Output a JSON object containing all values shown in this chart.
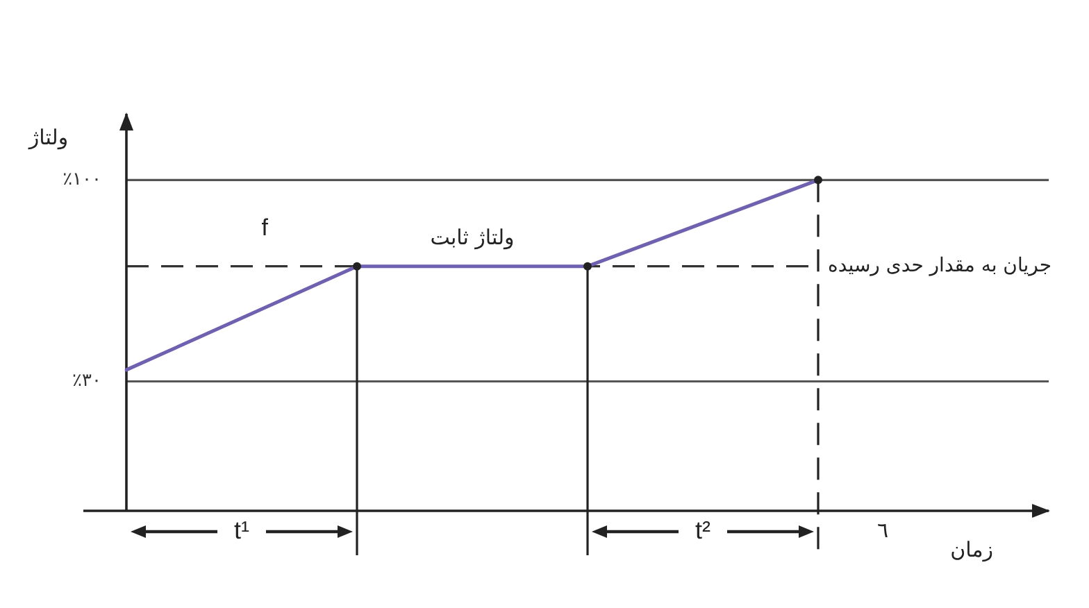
{
  "chart_data": {
    "type": "line",
    "xlabel": "زمان",
    "ylabel": "ولتاژ",
    "categories": [
      null,
      null,
      null,
      null,
      null
    ],
    "series": [
      {
        "color": "#7060b0",
        "values": [
          34,
          70,
          70,
          100,
          null
        ]
      },
      {
        "type": "lollipop",
        "color": "#222222",
        "marker": "circle",
        "values": [
          null,
          70,
          70,
          null,
          null
        ]
      },
      {
        "type": "lollipop",
        "color": "#222222",
        "marker": "circle",
        "line_style": "dashed",
        "values": [
          null,
          null,
          null,
          100,
          null
        ]
      }
    ],
    "marker": "none",
    "ylim": [
      -15,
      123
    ],
    "yticks": [
      {
        "value": 30,
        "label": "٪۳۰"
      },
      {
        "value": 100,
        "label": "٪۱۰۰"
      }
    ],
    "tick_labels": "y",
    "ref_lines": [
      {
        "axis": "y",
        "value": 100,
        "color": "#555555"
      },
      {
        "axis": "y",
        "value": 30,
        "color": "#555555"
      },
      {
        "axis": "y",
        "value": 70,
        "label": "جریان به مقدار حدی رسیده",
        "line_style": "dashed",
        "color": "#333333"
      }
    ],
    "annotations": [
      "f",
      "ولتاژ ثابت",
      "t¹",
      "t²",
      "٦"
    ]
  }
}
